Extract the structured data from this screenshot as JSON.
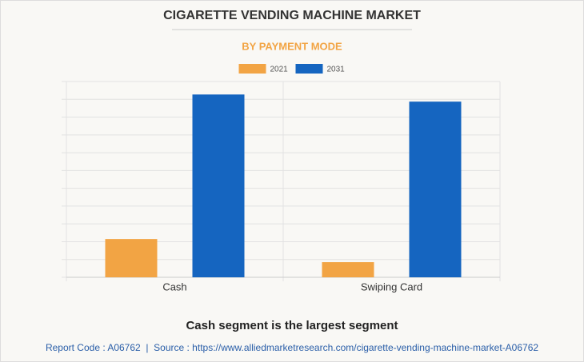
{
  "chart_data": {
    "type": "bar",
    "title": "CIGARETTE VENDING MACHINE MARKET",
    "subtitle": "BY PAYMENT MODE",
    "categories": [
      "Cash",
      "Swiping Card"
    ],
    "series": [
      {
        "name": "2021",
        "color": "#f2a444",
        "values": [
          2.15,
          0.85
        ]
      },
      {
        "name": "2031",
        "color": "#1565c0",
        "values": [
          10.27,
          9.87
        ]
      }
    ],
    "ylim": [
      0,
      11
    ],
    "yticks": [
      0,
      1,
      2,
      3,
      4,
      5,
      6,
      7,
      8,
      9,
      10,
      11
    ],
    "grid": true,
    "legend": "top",
    "caption": "Cash segment is the largest segment",
    "footer": "Report Code : A06762  |  Source : https://www.alliedmarketresearch.com/cigarette-vending-machine-market-A06762"
  }
}
